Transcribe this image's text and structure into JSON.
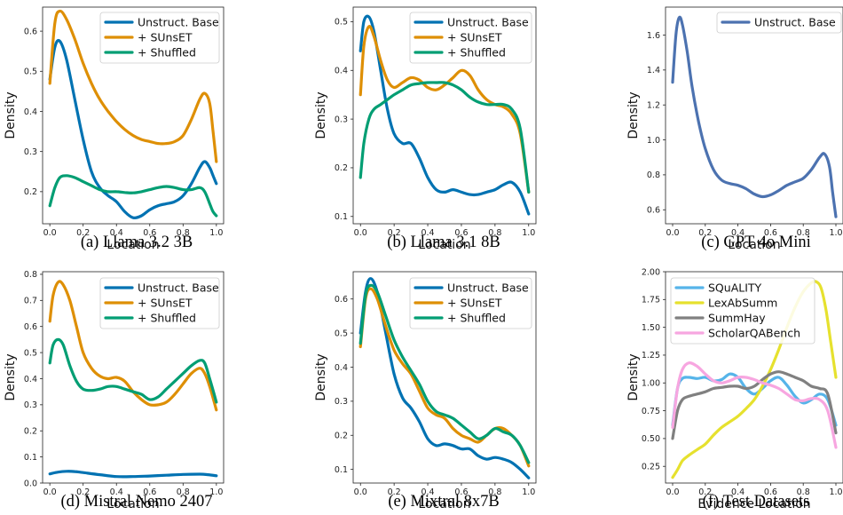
{
  "chart_data": [
    {
      "id": "a",
      "type": "line",
      "caption": "(a) Llama 3.2 3B",
      "xlabel": "Location",
      "ylabel": "Density",
      "xlim": [
        0,
        1
      ],
      "ylim": [
        0.12,
        0.66
      ],
      "xticks": [
        "0.0",
        "0.2",
        "0.4",
        "0.6",
        "0.8",
        "1.0"
      ],
      "yticks": [
        "0.2",
        "0.3",
        "0.4",
        "0.5",
        "0.6"
      ],
      "legend": "top-right",
      "series": [
        {
          "name": "Unstruct. Base",
          "color": "#0072b2",
          "x": [
            0,
            0.03,
            0.06,
            0.1,
            0.15,
            0.2,
            0.25,
            0.3,
            0.35,
            0.4,
            0.45,
            0.5,
            0.55,
            0.6,
            0.65,
            0.7,
            0.75,
            0.8,
            0.85,
            0.9,
            0.93,
            0.96,
            0.98,
            1.0
          ],
          "y": [
            0.48,
            0.56,
            0.575,
            0.53,
            0.43,
            0.33,
            0.25,
            0.21,
            0.19,
            0.175,
            0.15,
            0.135,
            0.14,
            0.155,
            0.165,
            0.17,
            0.175,
            0.19,
            0.22,
            0.26,
            0.275,
            0.26,
            0.24,
            0.22
          ]
        },
        {
          "name": "+ SUnsET",
          "color": "#de8f05",
          "x": [
            0,
            0.03,
            0.06,
            0.1,
            0.15,
            0.2,
            0.25,
            0.3,
            0.35,
            0.4,
            0.45,
            0.5,
            0.55,
            0.6,
            0.65,
            0.7,
            0.75,
            0.8,
            0.85,
            0.9,
            0.93,
            0.96,
            0.98,
            1.0
          ],
          "y": [
            0.47,
            0.62,
            0.65,
            0.63,
            0.58,
            0.52,
            0.47,
            0.43,
            0.4,
            0.375,
            0.355,
            0.34,
            0.33,
            0.325,
            0.32,
            0.32,
            0.325,
            0.34,
            0.38,
            0.43,
            0.445,
            0.42,
            0.35,
            0.275
          ]
        },
        {
          "name": "+ Shuffled",
          "color": "#029e73",
          "x": [
            0,
            0.03,
            0.06,
            0.1,
            0.15,
            0.2,
            0.25,
            0.3,
            0.35,
            0.4,
            0.45,
            0.5,
            0.55,
            0.6,
            0.65,
            0.7,
            0.75,
            0.8,
            0.85,
            0.9,
            0.93,
            0.96,
            0.98,
            1.0
          ],
          "y": [
            0.165,
            0.21,
            0.235,
            0.24,
            0.235,
            0.225,
            0.215,
            0.205,
            0.2,
            0.2,
            0.198,
            0.197,
            0.2,
            0.205,
            0.21,
            0.213,
            0.21,
            0.205,
            0.205,
            0.21,
            0.2,
            0.17,
            0.15,
            0.14
          ]
        }
      ]
    },
    {
      "id": "b",
      "type": "line",
      "caption": "(b) Llama 3.1 8B",
      "xlabel": "Location",
      "ylabel": "Density",
      "xlim": [
        0,
        1
      ],
      "ylim": [
        0.085,
        0.53
      ],
      "xticks": [
        "0.0",
        "0.2",
        "0.4",
        "0.6",
        "0.8",
        "1.0"
      ],
      "yticks": [
        "0.1",
        "0.2",
        "0.3",
        "0.4",
        "0.5"
      ],
      "legend": "top-right",
      "series": [
        {
          "name": "Unstruct. Base",
          "color": "#0072b2",
          "x": [
            0,
            0.02,
            0.05,
            0.08,
            0.12,
            0.16,
            0.2,
            0.25,
            0.3,
            0.35,
            0.4,
            0.45,
            0.5,
            0.55,
            0.6,
            0.65,
            0.7,
            0.75,
            0.8,
            0.85,
            0.9,
            0.95,
            1.0
          ],
          "y": [
            0.44,
            0.5,
            0.51,
            0.48,
            0.4,
            0.32,
            0.27,
            0.25,
            0.25,
            0.22,
            0.18,
            0.155,
            0.15,
            0.155,
            0.15,
            0.145,
            0.145,
            0.15,
            0.155,
            0.165,
            0.17,
            0.15,
            0.105
          ]
        },
        {
          "name": "+ SUnsET",
          "color": "#de8f05",
          "x": [
            0,
            0.02,
            0.05,
            0.08,
            0.12,
            0.16,
            0.2,
            0.25,
            0.3,
            0.35,
            0.4,
            0.45,
            0.5,
            0.55,
            0.6,
            0.65,
            0.7,
            0.75,
            0.8,
            0.85,
            0.9,
            0.95,
            1.0
          ],
          "y": [
            0.35,
            0.45,
            0.49,
            0.47,
            0.42,
            0.38,
            0.365,
            0.375,
            0.385,
            0.38,
            0.365,
            0.36,
            0.37,
            0.385,
            0.4,
            0.39,
            0.36,
            0.34,
            0.33,
            0.325,
            0.31,
            0.27,
            0.15
          ]
        },
        {
          "name": "+ Shuffled",
          "color": "#029e73",
          "x": [
            0,
            0.02,
            0.05,
            0.08,
            0.12,
            0.16,
            0.2,
            0.25,
            0.3,
            0.35,
            0.4,
            0.45,
            0.5,
            0.55,
            0.6,
            0.65,
            0.7,
            0.75,
            0.8,
            0.85,
            0.9,
            0.95,
            1.0
          ],
          "y": [
            0.18,
            0.25,
            0.3,
            0.32,
            0.33,
            0.34,
            0.35,
            0.36,
            0.37,
            0.373,
            0.375,
            0.375,
            0.375,
            0.37,
            0.36,
            0.345,
            0.335,
            0.33,
            0.33,
            0.33,
            0.32,
            0.28,
            0.15
          ]
        }
      ]
    },
    {
      "id": "c",
      "type": "line",
      "caption": "(c) GPT 4o Mini",
      "xlabel": "Location",
      "ylabel": "Density",
      "xlim": [
        0,
        1
      ],
      "ylim": [
        0.52,
        1.76
      ],
      "xticks": [
        "0.0",
        "0.2",
        "0.4",
        "0.6",
        "0.8",
        "1.0"
      ],
      "yticks": [
        "0.6",
        "0.8",
        "1.0",
        "1.2",
        "1.4",
        "1.6"
      ],
      "legend": "top-right",
      "series": [
        {
          "name": "Unstruct. Base",
          "color": "#4c72b0",
          "x": [
            0,
            0.02,
            0.04,
            0.06,
            0.09,
            0.12,
            0.16,
            0.2,
            0.25,
            0.3,
            0.35,
            0.4,
            0.45,
            0.5,
            0.55,
            0.6,
            0.65,
            0.7,
            0.75,
            0.8,
            0.85,
            0.9,
            0.93,
            0.96,
            0.98,
            1.0
          ],
          "y": [
            1.33,
            1.6,
            1.7,
            1.66,
            1.5,
            1.3,
            1.1,
            0.95,
            0.83,
            0.77,
            0.75,
            0.74,
            0.72,
            0.69,
            0.675,
            0.685,
            0.71,
            0.74,
            0.76,
            0.78,
            0.83,
            0.9,
            0.92,
            0.85,
            0.7,
            0.56
          ]
        }
      ]
    },
    {
      "id": "d",
      "type": "line",
      "caption": "(d) Mistral Nemo 2407",
      "xlabel": "Location",
      "ylabel": "Density",
      "xlim": [
        0,
        1
      ],
      "ylim": [
        0,
        0.81
      ],
      "xticks": [
        "0.0",
        "0.2",
        "0.4",
        "0.6",
        "0.8",
        "1.0"
      ],
      "yticks": [
        "0.0",
        "0.1",
        "0.2",
        "0.3",
        "0.4",
        "0.5",
        "0.6",
        "0.7",
        "0.8"
      ],
      "legend": "top-right",
      "series": [
        {
          "name": "Unstruct. Base",
          "color": "#0072b2",
          "x": [
            0,
            0.05,
            0.1,
            0.15,
            0.2,
            0.3,
            0.4,
            0.5,
            0.6,
            0.7,
            0.8,
            0.9,
            0.95,
            1.0
          ],
          "y": [
            0.035,
            0.042,
            0.045,
            0.044,
            0.04,
            0.032,
            0.025,
            0.025,
            0.027,
            0.03,
            0.033,
            0.034,
            0.032,
            0.028
          ]
        },
        {
          "name": "+ SUnsET",
          "color": "#de8f05",
          "x": [
            0,
            0.02,
            0.05,
            0.08,
            0.12,
            0.16,
            0.2,
            0.25,
            0.3,
            0.35,
            0.4,
            0.45,
            0.5,
            0.55,
            0.6,
            0.65,
            0.7,
            0.75,
            0.8,
            0.85,
            0.9,
            0.93,
            0.96,
            1.0
          ],
          "y": [
            0.62,
            0.72,
            0.77,
            0.76,
            0.7,
            0.6,
            0.5,
            0.44,
            0.41,
            0.4,
            0.405,
            0.39,
            0.35,
            0.32,
            0.3,
            0.3,
            0.31,
            0.34,
            0.38,
            0.42,
            0.44,
            0.42,
            0.37,
            0.28
          ]
        },
        {
          "name": "+ Shuffled",
          "color": "#029e73",
          "x": [
            0,
            0.02,
            0.05,
            0.08,
            0.12,
            0.16,
            0.2,
            0.25,
            0.3,
            0.35,
            0.4,
            0.45,
            0.5,
            0.55,
            0.6,
            0.65,
            0.7,
            0.75,
            0.8,
            0.85,
            0.9,
            0.93,
            0.96,
            1.0
          ],
          "y": [
            0.46,
            0.53,
            0.55,
            0.53,
            0.45,
            0.39,
            0.36,
            0.355,
            0.36,
            0.37,
            0.37,
            0.36,
            0.35,
            0.34,
            0.32,
            0.33,
            0.36,
            0.39,
            0.42,
            0.45,
            0.47,
            0.46,
            0.4,
            0.31
          ]
        }
      ]
    },
    {
      "id": "e",
      "type": "line",
      "caption": "(e) Mixtral 8x7B",
      "xlabel": "Location",
      "ylabel": "Density",
      "xlim": [
        0,
        1
      ],
      "ylim": [
        0.06,
        0.68
      ],
      "xticks": [
        "0.0",
        "0.2",
        "0.4",
        "0.6",
        "0.8",
        "1.0"
      ],
      "yticks": [
        "0.1",
        "0.2",
        "0.3",
        "0.4",
        "0.5",
        "0.6"
      ],
      "legend": "top-right",
      "series": [
        {
          "name": "Unstruct. Base",
          "color": "#0072b2",
          "x": [
            0,
            0.03,
            0.06,
            0.1,
            0.15,
            0.2,
            0.25,
            0.3,
            0.35,
            0.4,
            0.45,
            0.5,
            0.55,
            0.6,
            0.65,
            0.7,
            0.75,
            0.8,
            0.85,
            0.9,
            0.95,
            1.0
          ],
          "y": [
            0.5,
            0.62,
            0.66,
            0.62,
            0.5,
            0.38,
            0.31,
            0.28,
            0.24,
            0.19,
            0.17,
            0.175,
            0.17,
            0.16,
            0.16,
            0.14,
            0.13,
            0.135,
            0.13,
            0.12,
            0.1,
            0.075
          ]
        },
        {
          "name": "+ SUnsET",
          "color": "#de8f05",
          "x": [
            0,
            0.03,
            0.06,
            0.1,
            0.15,
            0.2,
            0.25,
            0.3,
            0.35,
            0.4,
            0.45,
            0.5,
            0.55,
            0.6,
            0.65,
            0.7,
            0.75,
            0.8,
            0.85,
            0.9,
            0.95,
            1.0
          ],
          "y": [
            0.46,
            0.6,
            0.63,
            0.6,
            0.52,
            0.45,
            0.41,
            0.38,
            0.33,
            0.28,
            0.26,
            0.25,
            0.22,
            0.2,
            0.19,
            0.18,
            0.2,
            0.22,
            0.22,
            0.2,
            0.17,
            0.11
          ]
        },
        {
          "name": "+ Shuffled",
          "color": "#029e73",
          "x": [
            0,
            0.03,
            0.06,
            0.1,
            0.15,
            0.2,
            0.25,
            0.3,
            0.35,
            0.4,
            0.45,
            0.5,
            0.55,
            0.6,
            0.65,
            0.7,
            0.75,
            0.8,
            0.85,
            0.9,
            0.95,
            1.0
          ],
          "y": [
            0.47,
            0.61,
            0.64,
            0.62,
            0.55,
            0.48,
            0.43,
            0.39,
            0.35,
            0.3,
            0.27,
            0.26,
            0.25,
            0.23,
            0.21,
            0.19,
            0.2,
            0.22,
            0.21,
            0.2,
            0.17,
            0.12
          ]
        }
      ]
    },
    {
      "id": "f",
      "type": "line",
      "caption": "(f) Test Datasets",
      "xlabel": "Evidence Location",
      "ylabel": "Density",
      "xlim": [
        0,
        1
      ],
      "ylim": [
        0.1,
        2.0
      ],
      "xticks": [
        "0.0",
        "0.2",
        "0.4",
        "0.6",
        "0.8",
        "1.0"
      ],
      "yticks": [
        "0.25",
        "0.50",
        "0.75",
        "1.00",
        "1.25",
        "1.50",
        "1.75",
        "2.00"
      ],
      "legend": "top-left",
      "series": [
        {
          "name": "SQuALITY",
          "color": "#56b4e9",
          "x": [
            0,
            0.03,
            0.06,
            0.1,
            0.15,
            0.2,
            0.25,
            0.3,
            0.35,
            0.4,
            0.45,
            0.5,
            0.55,
            0.6,
            0.65,
            0.7,
            0.75,
            0.8,
            0.85,
            0.9,
            0.95,
            1.0
          ],
          "y": [
            0.62,
            0.95,
            1.04,
            1.05,
            1.04,
            1.05,
            1.02,
            1.03,
            1.08,
            1.05,
            0.95,
            0.9,
            0.95,
            1.02,
            1.05,
            0.98,
            0.88,
            0.82,
            0.85,
            0.9,
            0.85,
            0.62
          ]
        },
        {
          "name": "LexAbSumm",
          "color": "#e6e12e",
          "x": [
            0,
            0.03,
            0.06,
            0.1,
            0.15,
            0.2,
            0.25,
            0.3,
            0.35,
            0.4,
            0.45,
            0.5,
            0.55,
            0.6,
            0.65,
            0.7,
            0.75,
            0.8,
            0.85,
            0.88,
            0.91,
            0.94,
            0.97,
            1.0
          ],
          "y": [
            0.15,
            0.22,
            0.3,
            0.35,
            0.4,
            0.45,
            0.53,
            0.6,
            0.65,
            0.7,
            0.77,
            0.85,
            0.97,
            1.12,
            1.3,
            1.5,
            1.68,
            1.82,
            1.9,
            1.91,
            1.85,
            1.65,
            1.35,
            1.05
          ]
        },
        {
          "name": "SummHay",
          "color": "#808080",
          "x": [
            0,
            0.03,
            0.06,
            0.1,
            0.15,
            0.2,
            0.25,
            0.3,
            0.35,
            0.4,
            0.45,
            0.5,
            0.55,
            0.6,
            0.65,
            0.7,
            0.75,
            0.8,
            0.85,
            0.9,
            0.95,
            1.0
          ],
          "y": [
            0.5,
            0.75,
            0.85,
            0.88,
            0.9,
            0.92,
            0.95,
            0.96,
            0.97,
            0.97,
            0.95,
            0.97,
            1.03,
            1.08,
            1.1,
            1.08,
            1.05,
            1.02,
            0.97,
            0.95,
            0.9,
            0.55
          ]
        },
        {
          "name": "ScholarQABench",
          "color": "#f7a6e0",
          "x": [
            0,
            0.03,
            0.06,
            0.1,
            0.15,
            0.2,
            0.25,
            0.3,
            0.35,
            0.4,
            0.45,
            0.5,
            0.55,
            0.6,
            0.65,
            0.7,
            0.75,
            0.8,
            0.85,
            0.9,
            0.95,
            1.0
          ],
          "y": [
            0.6,
            0.95,
            1.12,
            1.18,
            1.15,
            1.08,
            1.02,
            1.0,
            1.02,
            1.05,
            1.05,
            1.03,
            1.0,
            0.98,
            0.95,
            0.9,
            0.85,
            0.84,
            0.86,
            0.85,
            0.75,
            0.42
          ]
        }
      ]
    }
  ]
}
